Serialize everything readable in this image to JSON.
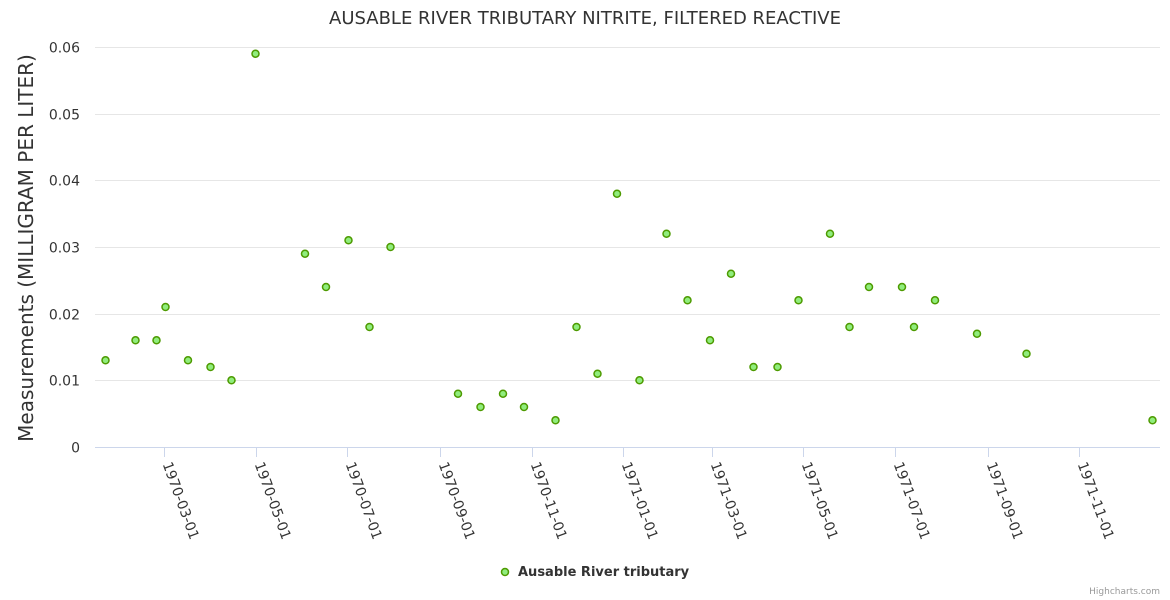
{
  "chart_data": {
    "type": "scatter",
    "title": "AUSABLE RIVER TRIBUTARY NITRITE, FILTERED REACTIVE",
    "xlabel": "",
    "ylabel": "Measurements (MILLIGRAM PER LITER)",
    "ylim": [
      0,
      0.06
    ],
    "yticks": [
      0,
      0.01,
      0.02,
      0.03,
      0.04,
      0.05,
      0.06
    ],
    "ytick_labels": [
      "0",
      "0.01",
      "0.02",
      "0.03",
      "0.04",
      "0.05",
      "0.06"
    ],
    "xlim": [
      "1970-01-14",
      "1971-12-25"
    ],
    "xticks": [
      "1970-03-01",
      "1970-05-01",
      "1970-07-01",
      "1970-09-01",
      "1970-11-01",
      "1971-01-01",
      "1971-03-01",
      "1971-05-01",
      "1971-07-01",
      "1971-09-01",
      "1971-11-01"
    ],
    "grid": true,
    "legend_position": "bottom-center",
    "series": [
      {
        "name": "Ausable River tributary",
        "color": "#90ed7d",
        "edge_color": "#4d9a00",
        "points": [
          {
            "x": "1970-01-21",
            "y": 0.013
          },
          {
            "x": "1970-02-10",
            "y": 0.016
          },
          {
            "x": "1970-02-24",
            "y": 0.016
          },
          {
            "x": "1970-03-02",
            "y": 0.021
          },
          {
            "x": "1970-03-17",
            "y": 0.013
          },
          {
            "x": "1970-04-01",
            "y": 0.012
          },
          {
            "x": "1970-04-15",
            "y": 0.01
          },
          {
            "x": "1970-05-01",
            "y": 0.059
          },
          {
            "x": "1970-06-03",
            "y": 0.029
          },
          {
            "x": "1970-06-17",
            "y": 0.024
          },
          {
            "x": "1970-07-02",
            "y": 0.031
          },
          {
            "x": "1970-07-16",
            "y": 0.018
          },
          {
            "x": "1970-07-30",
            "y": 0.03
          },
          {
            "x": "1970-09-13",
            "y": 0.008
          },
          {
            "x": "1970-09-28",
            "y": 0.006
          },
          {
            "x": "1970-10-13",
            "y": 0.008
          },
          {
            "x": "1970-10-27",
            "y": 0.006
          },
          {
            "x": "1970-11-17",
            "y": 0.004
          },
          {
            "x": "1970-12-01",
            "y": 0.018
          },
          {
            "x": "1970-12-15",
            "y": 0.011
          },
          {
            "x": "1970-12-28",
            "y": 0.038
          },
          {
            "x": "1971-01-12",
            "y": 0.01
          },
          {
            "x": "1971-01-30",
            "y": 0.032
          },
          {
            "x": "1971-02-13",
            "y": 0.022
          },
          {
            "x": "1971-02-28",
            "y": 0.016
          },
          {
            "x": "1971-03-14",
            "y": 0.026
          },
          {
            "x": "1971-03-29",
            "y": 0.012
          },
          {
            "x": "1971-04-14",
            "y": 0.012
          },
          {
            "x": "1971-04-28",
            "y": 0.022
          },
          {
            "x": "1971-05-19",
            "y": 0.032
          },
          {
            "x": "1971-06-01",
            "y": 0.018
          },
          {
            "x": "1971-06-14",
            "y": 0.024
          },
          {
            "x": "1971-07-06",
            "y": 0.024
          },
          {
            "x": "1971-07-14",
            "y": 0.018
          },
          {
            "x": "1971-07-28",
            "y": 0.022
          },
          {
            "x": "1971-08-25",
            "y": 0.017
          },
          {
            "x": "1971-09-27",
            "y": 0.014
          },
          {
            "x": "1971-12-20",
            "y": 0.004
          }
        ]
      }
    ]
  },
  "credits": "Highcharts.com"
}
